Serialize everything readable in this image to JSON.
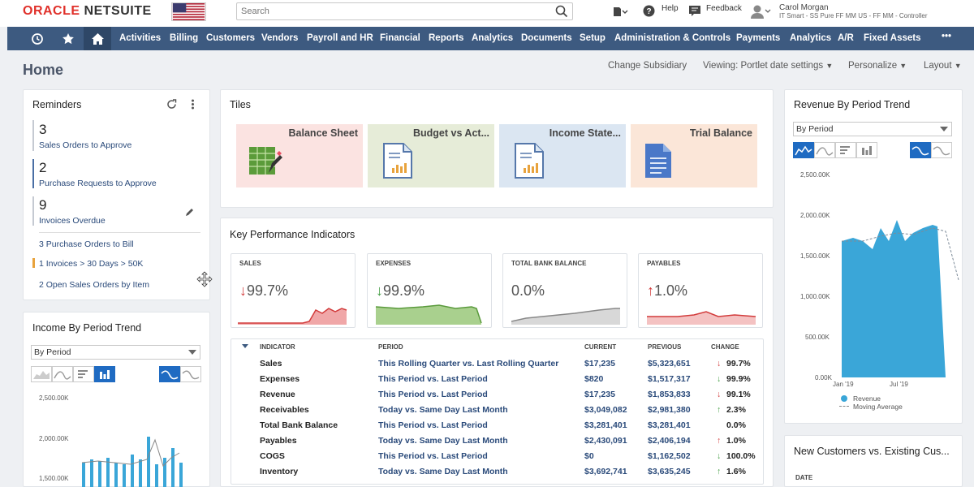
{
  "header": {
    "logo_oracle": "ORACLE",
    "logo_netsuite": "NETSUITE",
    "search_placeholder": "Search",
    "help_label": "Help",
    "feedback_label": "Feedback",
    "user_name": "Carol Morgan",
    "user_role": "IT Smart - SS Pure FF MM US - FF MM - Controller"
  },
  "nav": {
    "items": [
      "Activities",
      "Billing",
      "Customers",
      "Vendors",
      "Payroll and HR",
      "Financial",
      "Reports",
      "Analytics",
      "Documents",
      "Setup",
      "Administration & Controls",
      "Payments",
      "Analytics",
      "A/R",
      "Fixed Assets"
    ],
    "more": "•••"
  },
  "page": {
    "title": "Home",
    "change_subsidiary": "Change Subsidiary",
    "viewing": "Viewing: Portlet date settings",
    "personalize": "Personalize",
    "layout": "Layout"
  },
  "reminders": {
    "title": "Reminders",
    "items": [
      {
        "count": "3",
        "label": "Sales Orders to Approve"
      },
      {
        "count": "2",
        "label": "Purchase Requests to Approve"
      },
      {
        "count": "9",
        "label": "Invoices Overdue"
      }
    ],
    "links": [
      "3  Purchase Orders to Bill",
      "1  Invoices > 30 Days > 50K",
      "2  Open Sales Orders by Item"
    ]
  },
  "tiles": {
    "title": "Tiles",
    "items": [
      {
        "label": "Balance Sheet",
        "color": "#fbe3e1"
      },
      {
        "label": "Budget vs Act...",
        "color": "#e6ecd8"
      },
      {
        "label": "Income State...",
        "color": "#dbe6f2"
      },
      {
        "label": "Trial Balance",
        "color": "#fbe6d8"
      }
    ]
  },
  "kpi": {
    "title": "Key Performance Indicators",
    "cards": [
      {
        "label": "SALES",
        "arrow": "↓",
        "value": "99.7%"
      },
      {
        "label": "EXPENSES",
        "arrow": "↓",
        "value": "99.9%"
      },
      {
        "label": "TOTAL BANK BALANCE",
        "arrow": "",
        "value": "0.0%"
      },
      {
        "label": "PAYABLES",
        "arrow": "↑",
        "value": "1.0%"
      }
    ],
    "headers": {
      "indicator": "INDICATOR",
      "period": "PERIOD",
      "current": "CURRENT",
      "previous": "PREVIOUS",
      "change": "CHANGE"
    },
    "rows": [
      {
        "indicator": "Sales",
        "period": "This Rolling Quarter vs. Last Rolling Quarter",
        "current": "$17,235",
        "previous": "$5,323,651",
        "arrow": "↓",
        "change": "99.7%"
      },
      {
        "indicator": "Expenses",
        "period": "This Period vs. Last Period",
        "current": "$820",
        "previous": "$1,517,317",
        "arrow": "↓",
        "change": "99.9%"
      },
      {
        "indicator": "Revenue",
        "period": "This Period vs. Last Period",
        "current": "$17,235",
        "previous": "$1,853,833",
        "arrow": "↓",
        "change": "99.1%"
      },
      {
        "indicator": "Receivables",
        "period": "Today vs. Same Day Last Month",
        "current": "$3,049,082",
        "previous": "$2,981,380",
        "arrow": "↑",
        "change": "2.3%"
      },
      {
        "indicator": "Total Bank Balance",
        "period": "This Period vs. Last Period",
        "current": "$3,281,401",
        "previous": "$3,281,401",
        "arrow": "",
        "change": "0.0%"
      },
      {
        "indicator": "Payables",
        "period": "Today vs. Same Day Last Month",
        "current": "$2,430,091",
        "previous": "$2,406,194",
        "arrow": "↑",
        "change": "1.0%"
      },
      {
        "indicator": "COGS",
        "period": "This Period vs. Last Period",
        "current": "$0",
        "previous": "$1,162,502",
        "arrow": "↓",
        "change": "100.0%"
      },
      {
        "indicator": "Inventory",
        "period": "Today vs. Same Day Last Month",
        "current": "$3,692,741",
        "previous": "$3,635,245",
        "arrow": "↑",
        "change": "1.6%"
      }
    ]
  },
  "income_trend": {
    "title": "Income By Period Trend",
    "select": "By Period",
    "y_ticks": [
      "2,500.00K",
      "2,000.00K",
      "1,500.00K"
    ]
  },
  "revenue_trend": {
    "title": "Revenue By Period Trend",
    "select": "By Period",
    "y_ticks": [
      "2,500.00K",
      "2,000.00K",
      "1,500.00K",
      "1,000.00K",
      "500.00K",
      "0.00K"
    ],
    "x_ticks": [
      "Jan '19",
      "Jul '19"
    ],
    "legend_revenue": "Revenue",
    "legend_ma": "Moving Average"
  },
  "new_customers": {
    "title": "New Customers vs. Existing Cus...",
    "col_date": "DATE"
  },
  "colors": {
    "nav_bg": "#3d5a80",
    "nav_active": "#2e4767",
    "revenue_area": "#3aa6d8",
    "link": "#2a4a7a"
  }
}
